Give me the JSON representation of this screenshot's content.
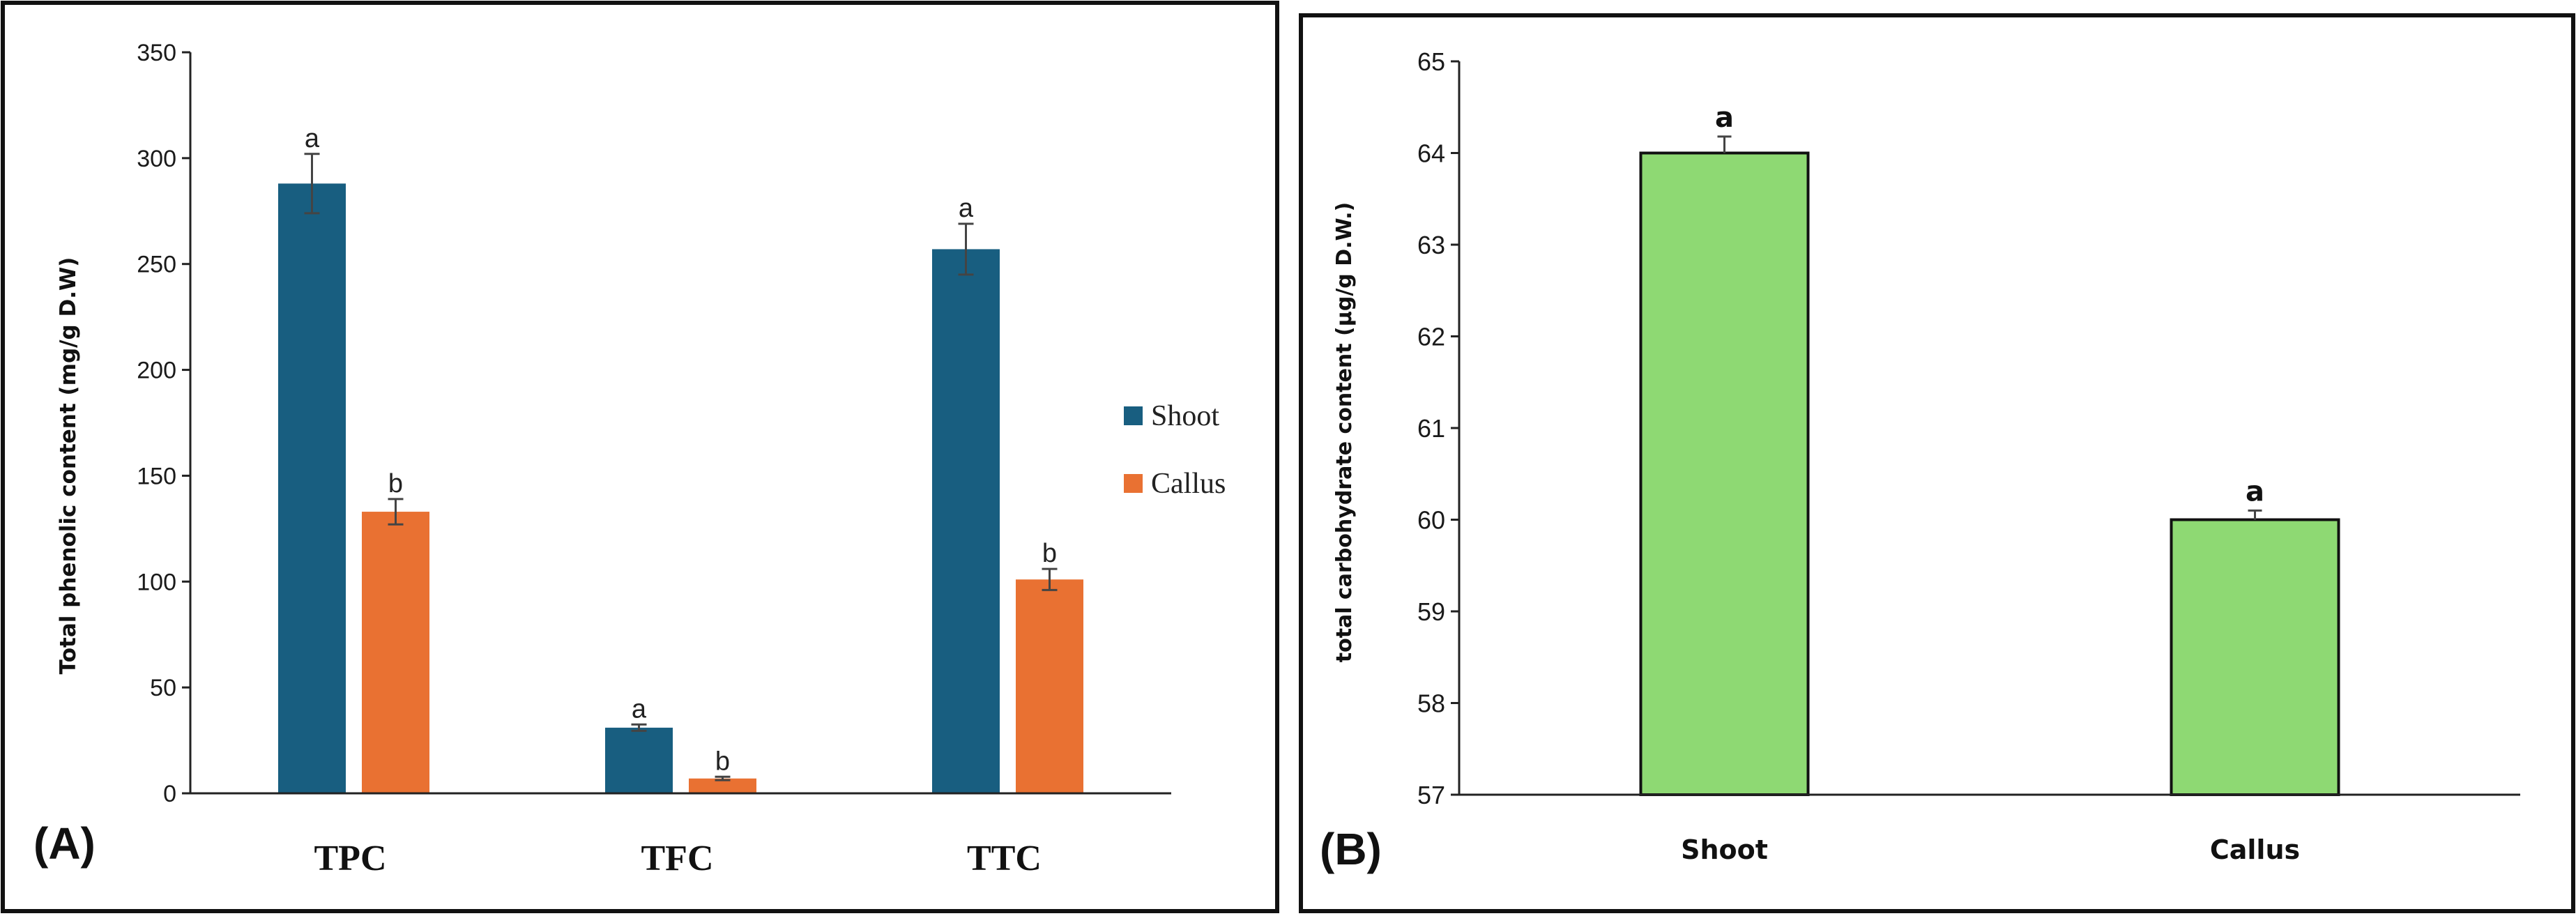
{
  "panels": {
    "a": {
      "letter": "(A)"
    },
    "b": {
      "letter": "(B)"
    }
  },
  "chart_data": [
    {
      "type": "bar",
      "title": "",
      "xlabel": "",
      "ylabel": "Total phenolic content (mg/g D.W)",
      "ylim": [
        0,
        350
      ],
      "yticks": [
        0,
        50,
        100,
        150,
        200,
        250,
        300,
        350
      ],
      "grid": false,
      "legend_position": "right",
      "categories": [
        "TPC",
        "TFC",
        "TTC"
      ],
      "series": [
        {
          "name": "Shoot",
          "color": "#185e80",
          "values": [
            288,
            31,
            257
          ],
          "errors": [
            14,
            1.5,
            12
          ],
          "labels": [
            "a",
            "a",
            "a"
          ]
        },
        {
          "name": "Callus",
          "color": "#e97132",
          "values": [
            133,
            7,
            101
          ],
          "errors": [
            6,
            0.8,
            5
          ],
          "labels": [
            "b",
            "b",
            "b"
          ]
        }
      ]
    },
    {
      "type": "bar",
      "title": "",
      "xlabel": "",
      "ylabel": "total carbohydrate content (µg/g D.W.)",
      "ylim": [
        57,
        65
      ],
      "yticks": [
        57,
        58,
        59,
        60,
        61,
        62,
        63,
        64,
        65
      ],
      "grid": false,
      "categories": [
        "Shoot",
        "Callus"
      ],
      "series": [
        {
          "name": "Total carbohydrate",
          "color": "#8ed973",
          "values": [
            64,
            60
          ],
          "errors": [
            0.18,
            0.1
          ],
          "labels": [
            "a",
            "a"
          ]
        }
      ]
    }
  ]
}
